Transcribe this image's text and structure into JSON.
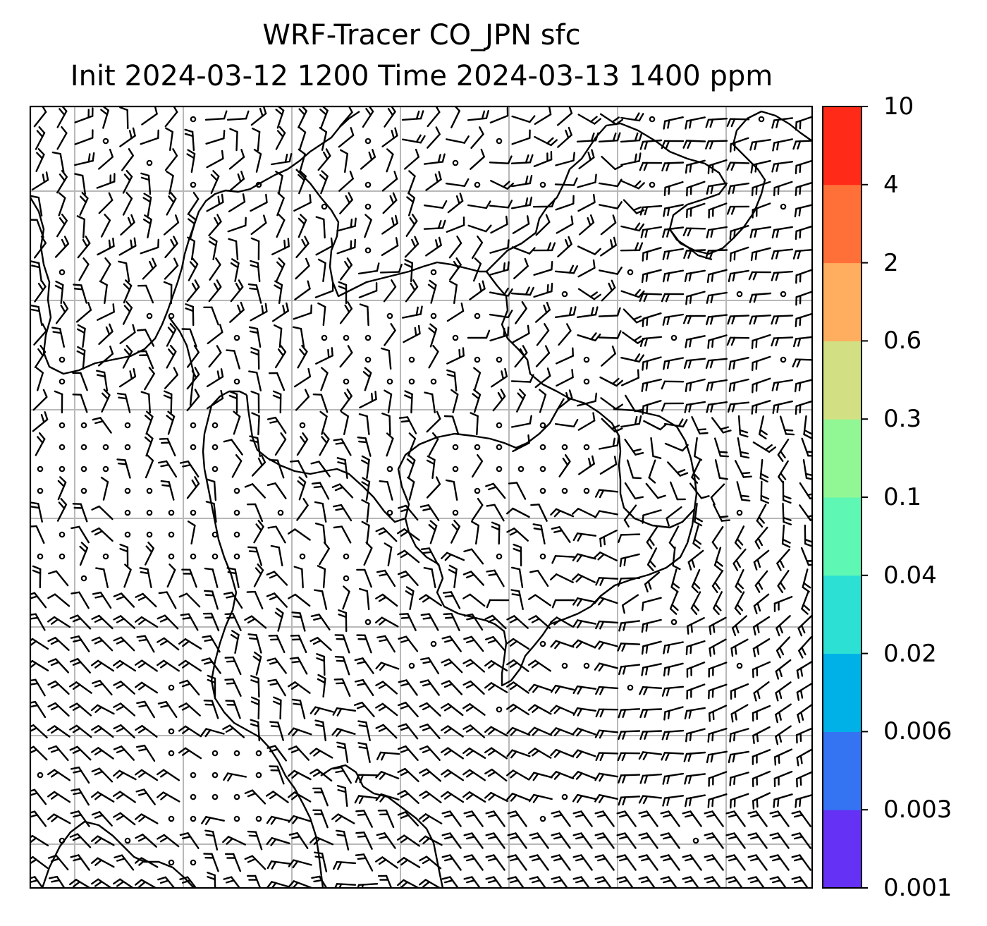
{
  "title_line1": "WRF-Tracer CO_JPN sfc",
  "title_line2": "Init 2024-03-12 1200 Time 2024-03-13 1400 ppm",
  "colorbar": {
    "levels": [
      "0.001",
      "0.003",
      "0.006",
      "0.02",
      "0.04",
      "0.1",
      "0.3",
      "0.6",
      "2",
      "4",
      "10"
    ],
    "colors": [
      "#6431f5",
      "#3474f3",
      "#00b1e8",
      "#2de0d4",
      "#5ff7b4",
      "#91f795",
      "#d2e083",
      "#ffad5f",
      "#ff7038",
      "#ff2a17"
    ]
  },
  "map": {
    "frame_color": "#000000",
    "grid_color": "#b8b8b8",
    "barb_color": "#000000",
    "coast_color": "#000000"
  }
}
